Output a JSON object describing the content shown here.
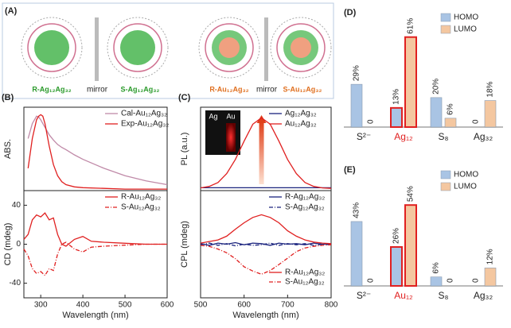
{
  "panel_a": {
    "label": "(A)",
    "captions": [
      "R-Ag₁₂Ag₃₂",
      "mirror",
      "S-Ag₁₂Ag₃₂",
      "R-Au₁₂Ag₃₂",
      "mirror",
      "S-Au₁₂Ag₃₂"
    ]
  },
  "chart_data": [
    {
      "type": "line",
      "panel": "(B)",
      "ylabel": "ABS.",
      "xlim": [
        260,
        600
      ],
      "ylim": [
        0,
        1.12
      ],
      "legend": "upper right",
      "x": [
        270,
        280,
        290,
        295,
        300,
        305,
        310,
        320,
        330,
        340,
        350,
        360,
        380,
        400,
        450,
        500,
        550,
        600
      ],
      "series": [
        {
          "name": "Cal-Au₁₂Ag₃₂",
          "color": "#c08aa8",
          "dash": "solid",
          "values": [
            0.7,
            0.9,
            1.0,
            0.99,
            0.95,
            0.9,
            0.85,
            0.75,
            0.68,
            0.62,
            0.58,
            0.55,
            0.48,
            0.42,
            0.3,
            0.2,
            0.13,
            0.08
          ]
        },
        {
          "name": "Exp-Au₁₂Ag₃₂",
          "color": "#e02020",
          "dash": "solid",
          "values": [
            0.3,
            0.7,
            0.95,
            1.0,
            1.02,
            1.0,
            0.9,
            0.6,
            0.35,
            0.2,
            0.12,
            0.08,
            0.05,
            0.04,
            0.03,
            0.02,
            0.02,
            0.02
          ]
        }
      ]
    },
    {
      "type": "line",
      "ylabel": "CD (mdeg)",
      "xlabel": "Wavelength (nm)",
      "xlim": [
        260,
        600
      ],
      "ylim": [
        -55,
        55
      ],
      "xticks": [
        300,
        400,
        500,
        600
      ],
      "yticks": [
        -40,
        0,
        40
      ],
      "legend": "upper right",
      "x": [
        260,
        270,
        280,
        290,
        300,
        310,
        320,
        330,
        340,
        350,
        360,
        380,
        400,
        420,
        450,
        500,
        550,
        600
      ],
      "series": [
        {
          "name": "R-Au₁₂Ag₃₂",
          "color": "#e02020",
          "dash": "solid",
          "values": [
            5,
            10,
            25,
            30,
            28,
            32,
            25,
            27,
            10,
            0,
            -2,
            5,
            8,
            3,
            2,
            1,
            0,
            0
          ]
        },
        {
          "name": "S-Au₁₂Ag₃₂",
          "color": "#e02020",
          "dash": "dashdot",
          "values": [
            -5,
            -12,
            -25,
            -30,
            -28,
            -32,
            -25,
            -27,
            -10,
            0,
            2,
            -5,
            -8,
            -3,
            -2,
            -1,
            0,
            0
          ]
        }
      ]
    },
    {
      "type": "line",
      "panel": "(C)",
      "ylabel": "PL (a.u.)",
      "xlim": [
        500,
        800
      ],
      "ylim": [
        -0.03,
        1.15
      ],
      "legend": "upper right",
      "inset_labels": [
        "Ag",
        "Au"
      ],
      "x": [
        500,
        520,
        540,
        560,
        580,
        600,
        620,
        640,
        660,
        680,
        700,
        720,
        740,
        760,
        780,
        800
      ],
      "series": [
        {
          "name": "Ag₁₂Ag₃₂",
          "color": "#1a237e",
          "dash": "solid",
          "values": [
            0.01,
            0.01,
            0.01,
            0.01,
            0.01,
            0.01,
            0.01,
            0.01,
            0.01,
            0.01,
            0.01,
            0.01,
            0.01,
            0.01,
            0.01,
            0.01
          ]
        },
        {
          "name": "Au₁₂Ag₃₂",
          "color": "#e02020",
          "dash": "solid",
          "values": [
            0.008,
            0.03,
            0.085,
            0.21,
            0.41,
            0.67,
            0.91,
            1.0,
            0.91,
            0.67,
            0.41,
            0.21,
            0.085,
            0.03,
            0.008,
            0.002
          ]
        }
      ]
    },
    {
      "type": "line",
      "ylabel": "CPL (mdeg)",
      "xlabel": "Wavelength (nm)",
      "xlim": [
        500,
        800
      ],
      "ylim": [
        -1,
        1
      ],
      "xticks": [
        500,
        600,
        700,
        800
      ],
      "legend": "upper right",
      "x": [
        500,
        520,
        540,
        560,
        580,
        600,
        620,
        640,
        660,
        680,
        700,
        720,
        740,
        760,
        780,
        800
      ],
      "series": [
        {
          "name": "R-Ag₁₂Ag₃₂",
          "color": "#1a237e",
          "dash": "solid",
          "legend_loc": "upper right",
          "values": [
            0.01,
            -0.02,
            0.02,
            0.0,
            0.03,
            -0.01,
            0.02,
            0.01,
            -0.02,
            0.02,
            0.0,
            0.01,
            -0.01,
            0.02,
            0.0,
            0.01
          ]
        },
        {
          "name": "S-Ag₁₂Ag₃₂",
          "color": "#1a237e",
          "dash": "dashdot",
          "legend_loc": "upper right",
          "values": [
            -0.01,
            0.02,
            -0.02,
            0.01,
            -0.03,
            0.0,
            -0.02,
            -0.01,
            0.02,
            -0.02,
            0.01,
            -0.01,
            0.01,
            -0.02,
            0.0,
            -0.01
          ]
        },
        {
          "name": "R-Au₁₂Ag₃₂",
          "color": "#e02020",
          "dash": "solid",
          "legend_loc": "lower right",
          "values": [
            0.02,
            0.05,
            0.08,
            0.15,
            0.28,
            0.4,
            0.5,
            0.55,
            0.5,
            0.4,
            0.25,
            0.15,
            0.08,
            0.04,
            0.02,
            0.01
          ]
        },
        {
          "name": "S-Au₁₂Ag₃₂",
          "color": "#e02020",
          "dash": "dashdot",
          "legend_loc": "lower right",
          "values": [
            -0.02,
            -0.04,
            -0.09,
            -0.16,
            -0.27,
            -0.42,
            -0.5,
            -0.56,
            -0.49,
            -0.38,
            -0.26,
            -0.14,
            -0.07,
            -0.04,
            -0.02,
            -0.01
          ]
        }
      ]
    },
    {
      "type": "bar",
      "panel": "(D)",
      "categories": [
        "S²⁻",
        "Ag₁₂",
        "S₈",
        "Ag₃₂"
      ],
      "ylim": [
        0,
        70
      ],
      "legend": "upper right",
      "highlighted": "Ag₁₂",
      "highlight_color": "#e02020",
      "series": [
        {
          "name": "HOMO",
          "color": "#a9c4e4",
          "values": [
            29,
            13,
            20,
            0
          ],
          "value_labels": [
            "29%",
            "13%",
            "20%",
            "0"
          ]
        },
        {
          "name": "LUMO",
          "color": "#f4c7a0",
          "values": [
            0,
            61,
            6,
            18
          ],
          "value_labels": [
            "0",
            "61%",
            "6%",
            "18%"
          ]
        }
      ]
    },
    {
      "type": "bar",
      "panel": "(E)",
      "categories": [
        "S²⁻",
        "Au₁₂",
        "S₈",
        "Ag₃₂"
      ],
      "ylim": [
        0,
        70
      ],
      "legend": "upper right",
      "highlighted": "Au₁₂",
      "highlight_color": "#e02020",
      "series": [
        {
          "name": "HOMO",
          "color": "#a9c4e4",
          "values": [
            43,
            26,
            6,
            0
          ],
          "value_labels": [
            "43%",
            "26%",
            "6%",
            "0"
          ]
        },
        {
          "name": "LUMO",
          "color": "#f4c7a0",
          "values": [
            0,
            54,
            0,
            12
          ],
          "value_labels": [
            "0",
            "54%",
            "0",
            "12%"
          ]
        }
      ]
    }
  ]
}
